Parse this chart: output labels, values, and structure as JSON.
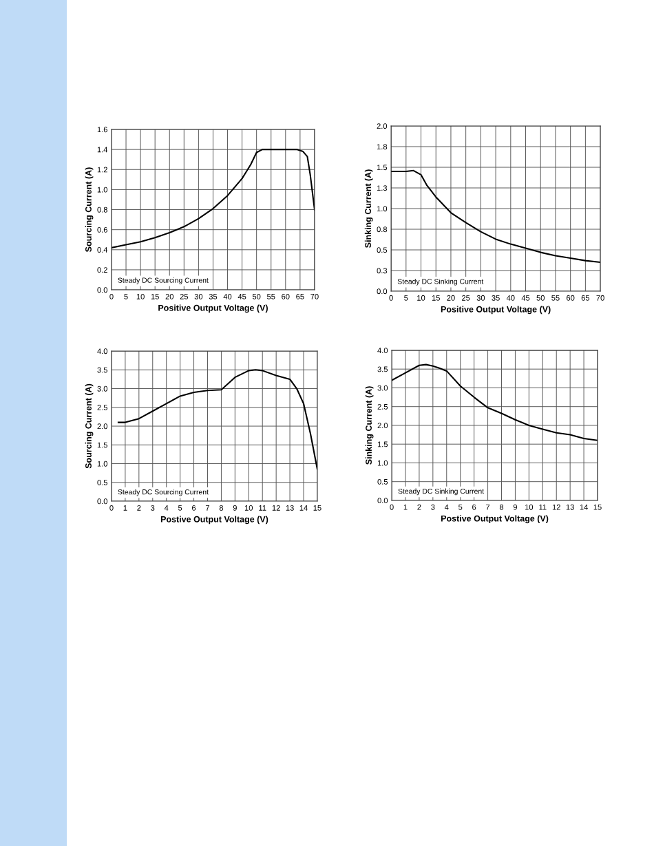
{
  "chart_data": [
    {
      "type": "line",
      "xlabel": "Positive Output Voltage (V)",
      "ylabel": "Sourcing Current (A)",
      "annotations": [
        "Steady DC Sourcing Current"
      ],
      "grid": true,
      "series": [
        {
          "color": "#000000",
          "x": [
            0,
            5,
            10,
            15,
            20,
            25,
            30,
            35,
            40,
            45,
            48,
            50,
            52,
            55,
            60,
            64,
            66,
            67.5,
            68.5,
            70
          ],
          "values": [
            0.42,
            0.45,
            0.48,
            0.52,
            0.57,
            0.63,
            0.71,
            0.81,
            0.94,
            1.11,
            1.25,
            1.37,
            1.4,
            1.4,
            1.4,
            1.4,
            1.38,
            1.33,
            1.15,
            0.8
          ]
        }
      ],
      "xlim": [
        0,
        70
      ],
      "xticks": [
        0,
        5,
        10,
        15,
        20,
        25,
        30,
        35,
        40,
        45,
        50,
        55,
        60,
        65,
        70
      ],
      "ylim": [
        0,
        1.6
      ],
      "yticks": [
        {
          "value": 0,
          "label": "0.0"
        },
        0.2,
        0.4,
        0.6,
        0.8,
        {
          "value": 1,
          "label": "1.0"
        },
        1.2,
        1.4,
        1.6
      ]
    },
    {
      "type": "line",
      "xlabel": "Positive Output Voltage (V)",
      "ylabel": "Sinking Current (A)",
      "annotations": [
        "Steady DC Sinking Current"
      ],
      "grid": true,
      "series": [
        {
          "color": "#000000",
          "x": [
            0,
            5,
            7.5,
            10,
            12,
            15,
            20,
            25,
            30,
            35,
            40,
            45,
            50,
            55,
            60,
            65,
            70
          ],
          "values": [
            1.45,
            1.45,
            1.46,
            1.41,
            1.28,
            1.14,
            0.95,
            0.83,
            0.72,
            0.63,
            0.57,
            0.52,
            0.47,
            0.43,
            0.4,
            0.37,
            0.35
          ]
        }
      ],
      "xlim": [
        0,
        70
      ],
      "xticks": [
        0,
        5,
        10,
        15,
        20,
        25,
        30,
        35,
        40,
        45,
        50,
        55,
        60,
        65,
        70
      ],
      "ylim": [
        0,
        2
      ],
      "yticks": [
        {
          "value": 0,
          "label": "0.0"
        },
        {
          "value": 0.25,
          "label": "0.3"
        },
        0.5,
        {
          "value": 0.75,
          "label": "0.8"
        },
        {
          "value": 1,
          "label": "1.0"
        },
        {
          "value": 1.25,
          "label": "1.3"
        },
        1.5,
        {
          "value": 1.75,
          "label": "1.8"
        },
        {
          "value": 2,
          "label": "2.0"
        }
      ]
    },
    {
      "type": "line",
      "xlabel": "Postive Output Voltage (V)",
      "ylabel": "Sourcing Current (A)",
      "annotations": [
        "Steady DC Sourcing Current"
      ],
      "grid": true,
      "series": [
        {
          "color": "#000000",
          "x": [
            0.5,
            1,
            2,
            3,
            4,
            5,
            6,
            7,
            8,
            9,
            10,
            10.5,
            11,
            12,
            13,
            13.5,
            14,
            14.5,
            15
          ],
          "values": [
            2.1,
            2.1,
            2.2,
            2.4,
            2.6,
            2.8,
            2.9,
            2.95,
            2.97,
            3.3,
            3.48,
            3.5,
            3.48,
            3.35,
            3.25,
            3.0,
            2.6,
            1.8,
            0.85
          ]
        }
      ],
      "xlim": [
        0,
        15
      ],
      "xticks": [
        0,
        1,
        2,
        3,
        4,
        5,
        6,
        7,
        8,
        9,
        10,
        11,
        12,
        13,
        14,
        15
      ],
      "ylim": [
        0,
        4
      ],
      "yticks": [
        {
          "value": 0,
          "label": "0.0"
        },
        0.5,
        {
          "value": 1,
          "label": "1.0"
        },
        1.5,
        {
          "value": 2,
          "label": "2.0"
        },
        2.5,
        {
          "value": 3,
          "label": "3.0"
        },
        3.5,
        {
          "value": 4,
          "label": "4.0"
        }
      ]
    },
    {
      "type": "line",
      "xlabel": "Postive Output Voltage (V)",
      "ylabel": "Sinking Current (A)",
      "annotations": [
        "Steady DC Sinking Current"
      ],
      "grid": true,
      "series": [
        {
          "color": "#000000",
          "x": [
            0,
            1,
            2,
            2.5,
            3,
            3.5,
            4,
            5,
            6,
            7,
            8,
            9,
            10,
            11,
            12,
            13,
            14,
            15
          ],
          "values": [
            3.2,
            3.4,
            3.6,
            3.62,
            3.58,
            3.52,
            3.45,
            3.05,
            2.75,
            2.47,
            2.32,
            2.15,
            2.0,
            1.9,
            1.8,
            1.75,
            1.65,
            1.6
          ]
        }
      ],
      "xlim": [
        0,
        15
      ],
      "xticks": [
        0,
        1,
        2,
        3,
        4,
        5,
        6,
        7,
        8,
        9,
        10,
        11,
        12,
        13,
        14,
        15
      ],
      "ylim": [
        0,
        4
      ],
      "yticks": [
        {
          "value": 0,
          "label": "0.0"
        },
        0.5,
        {
          "value": 1,
          "label": "1.0"
        },
        1.5,
        {
          "value": 2,
          "label": "2.0"
        },
        2.5,
        {
          "value": 3,
          "label": "3.0"
        },
        3.5,
        {
          "value": 4,
          "label": "4.0"
        }
      ]
    }
  ]
}
